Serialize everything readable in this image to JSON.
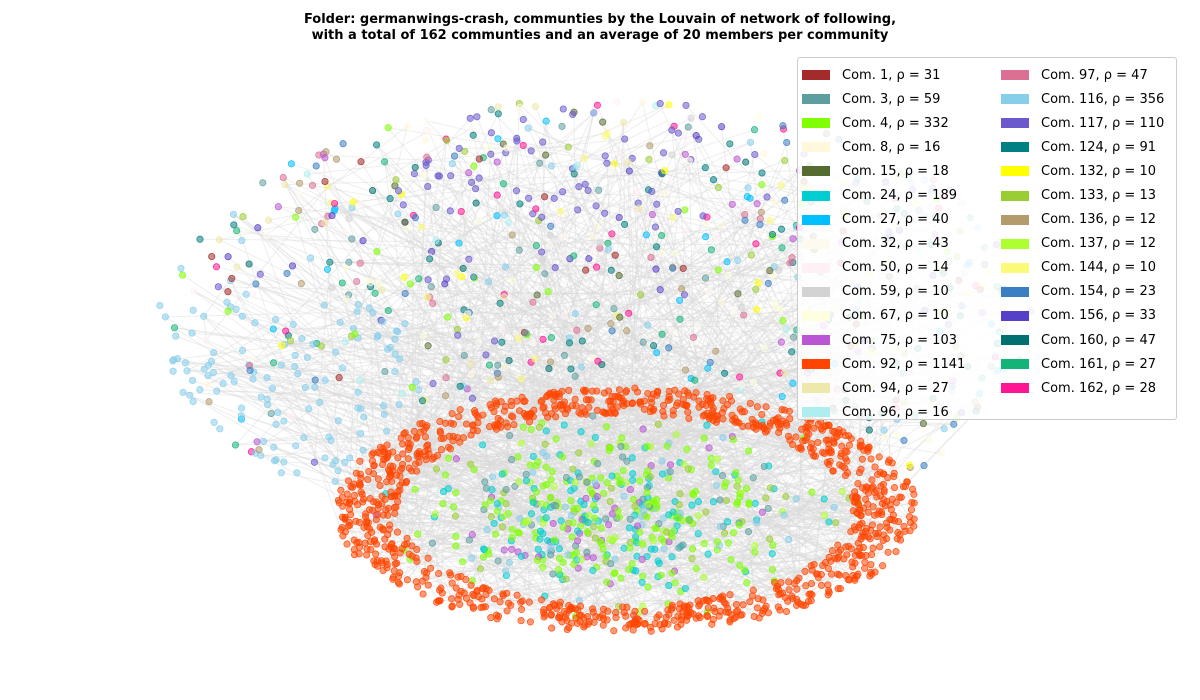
{
  "title": {
    "line1": "Folder: germanwings-crash, communties by the Louvain of network of following,",
    "line2": "with a total of 162 communties and an average of 20 members per community"
  },
  "legend": {
    "columns": [
      [
        {
          "label": "Com. 1, ρ = 31",
          "color": "#a52a2a"
        },
        {
          "label": "Com. 3, ρ = 59",
          "color": "#5f9ea0"
        },
        {
          "label": "Com. 4, ρ = 332",
          "color": "#7fff00"
        },
        {
          "label": "Com. 8, ρ = 16",
          "color": "#fff8dc"
        },
        {
          "label": "Com. 15, ρ = 18",
          "color": "#556b2f"
        },
        {
          "label": "Com. 24, ρ = 189",
          "color": "#00ced1"
        },
        {
          "label": "Com. 27, ρ = 40",
          "color": "#00bfff"
        },
        {
          "label": "Com. 32, ρ = 43",
          "color": "#fffaf0"
        },
        {
          "label": "Com. 50, ρ = 14",
          "color": "#fff0f5"
        },
        {
          "label": "Com. 59, ρ = 10",
          "color": "#d3d3d3"
        },
        {
          "label": "Com. 67, ρ = 10",
          "color": "#ffffe0"
        },
        {
          "label": "Com. 75, ρ = 103",
          "color": "#ba55d3"
        },
        {
          "label": "Com. 92, ρ = 1141",
          "color": "#ff4500"
        },
        {
          "label": "Com. 94, ρ = 27",
          "color": "#eee8aa"
        },
        {
          "label": "Com. 96, ρ = 16",
          "color": "#afeeee"
        }
      ],
      [
        {
          "label": "Com. 97, ρ = 47",
          "color": "#db7093"
        },
        {
          "label": "Com. 116, ρ = 356",
          "color": "#87ceeb"
        },
        {
          "label": "Com. 117, ρ = 110",
          "color": "#6a5acd"
        },
        {
          "label": "Com. 124, ρ = 91",
          "color": "#008080"
        },
        {
          "label": "Com. 132, ρ = 10",
          "color": "#ffff00"
        },
        {
          "label": "Com. 133, ρ = 13",
          "color": "#9acd32"
        },
        {
          "label": "Com. 136, ρ = 12",
          "color": "#b39b6c"
        },
        {
          "label": "Com. 137, ρ = 12",
          "color": "#adff2f"
        },
        {
          "label": "Com. 144, ρ = 10",
          "color": "#fafa78"
        },
        {
          "label": "Com. 154, ρ = 23",
          "color": "#3a7ec3"
        },
        {
          "label": "Com. 156, ρ = 33",
          "color": "#5540c8"
        },
        {
          "label": "Com. 160, ρ = 47",
          "color": "#007070"
        },
        {
          "label": "Com. 161, ρ = 27",
          "color": "#14b478"
        },
        {
          "label": "Com. 162, ρ = 28",
          "color": "#ff1493"
        }
      ]
    ]
  },
  "network": {
    "edge_color": "#d9d9d9",
    "node_alpha": 0.55
  }
}
